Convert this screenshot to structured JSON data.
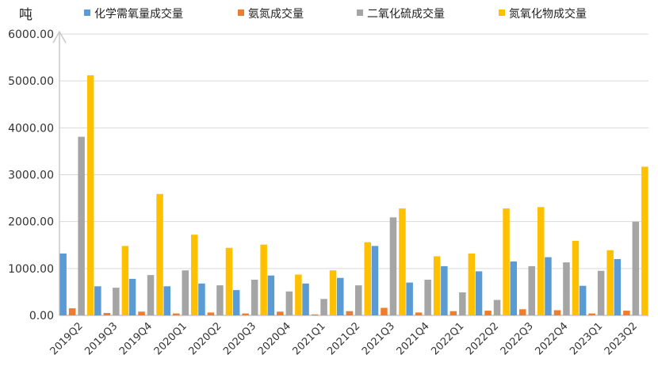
{
  "chart_data": {
    "type": "bar",
    "y_unit_label": "吨",
    "categories": [
      "2019Q2",
      "2019Q3",
      "2019Q4",
      "2020Q1",
      "2020Q2",
      "2020Q3",
      "2020Q4",
      "2021Q1",
      "2021Q2",
      "2021Q3",
      "2021Q4",
      "2022Q1",
      "2022Q2",
      "2022Q3",
      "2022Q4",
      "2023Q1",
      "2023Q2"
    ],
    "series": [
      {
        "name": "化学需氧量成交量",
        "color": "#5b9bd5",
        "values": [
          1320,
          620,
          780,
          620,
          680,
          540,
          850,
          680,
          800,
          1480,
          700,
          1050,
          940,
          1150,
          1240,
          630,
          1200
        ]
      },
      {
        "name": "氨氮成交量",
        "color": "#ed7d31",
        "values": [
          150,
          50,
          80,
          40,
          60,
          40,
          80,
          20,
          90,
          160,
          60,
          90,
          100,
          130,
          110,
          40,
          100
        ]
      },
      {
        "name": "二氧化硫成交量",
        "color": "#a5a5a5",
        "values": [
          3810,
          590,
          860,
          960,
          640,
          760,
          510,
          350,
          640,
          2090,
          760,
          490,
          330,
          1050,
          1130,
          950,
          2000
        ]
      },
      {
        "name": "氮氧化物成交量",
        "color": "#ffc000",
        "values": [
          5120,
          1480,
          2590,
          1720,
          1440,
          1510,
          870,
          960,
          1560,
          2280,
          1260,
          1320,
          2280,
          2310,
          1590,
          1390,
          3170
        ]
      }
    ],
    "ylim": [
      0,
      6000
    ],
    "yticks": [
      "0.00",
      "1000.00",
      "2000.00",
      "3000.00",
      "4000.00",
      "5000.00",
      "6000.00"
    ],
    "grid": true,
    "legend_position": "top"
  }
}
